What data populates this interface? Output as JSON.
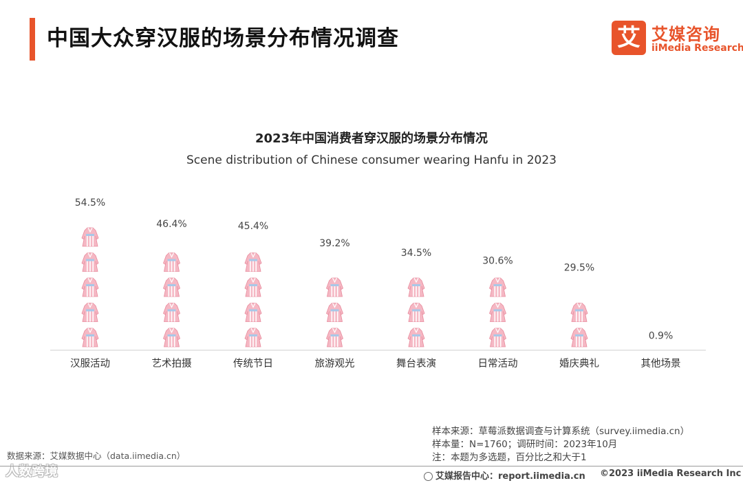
{
  "header": {
    "title": "中国大众穿汉服的场景分布情况调查",
    "logo_char": "艾",
    "logo_cn": "艾媒咨询",
    "logo_en": "iiMedia Research"
  },
  "colors": {
    "accent": "#e8542b",
    "icon_fill": "#f5b8c4",
    "icon_stripe": "#ffffff",
    "baseline": "#cccccc"
  },
  "chart_data": {
    "type": "bar",
    "style": "pictograph",
    "icon": "hanfu-dress-icon",
    "title": "2023年中国消费者穿汉服的场景分布情况",
    "subtitle": "Scene distribution of Chinese consumer wearing Hanfu in 2023",
    "categories": [
      "汉服活动",
      "艺术拍摄",
      "传统节日",
      "旅游观光",
      "舞台表演",
      "日常活动",
      "婚庆典礼",
      "其他场景"
    ],
    "values": [
      54.5,
      46.4,
      45.4,
      39.2,
      34.5,
      30.6,
      29.5,
      0.9
    ],
    "labels": [
      "54.5%",
      "46.4%",
      "45.4%",
      "39.2%",
      "34.5%",
      "30.6%",
      "29.5%",
      "0.9%"
    ],
    "unit": "%",
    "units_per_icon": 10,
    "ylim": [
      0,
      60
    ]
  },
  "notes": [
    "样本来源：草莓派数据调查与计算系统（survey.iimedia.cn）",
    "样本量：N=1760；调研时间：2023年10月",
    "注：本题为多选题，百分比之和大于1"
  ],
  "data_source": "数据来源：艾媒数据中心（data.iimedia.cn）",
  "watermark": "人数跨境",
  "footer": {
    "left": "艾媒报告中心：report.iimedia.cn",
    "right": "©2023  iiMedia Research  Inc"
  }
}
